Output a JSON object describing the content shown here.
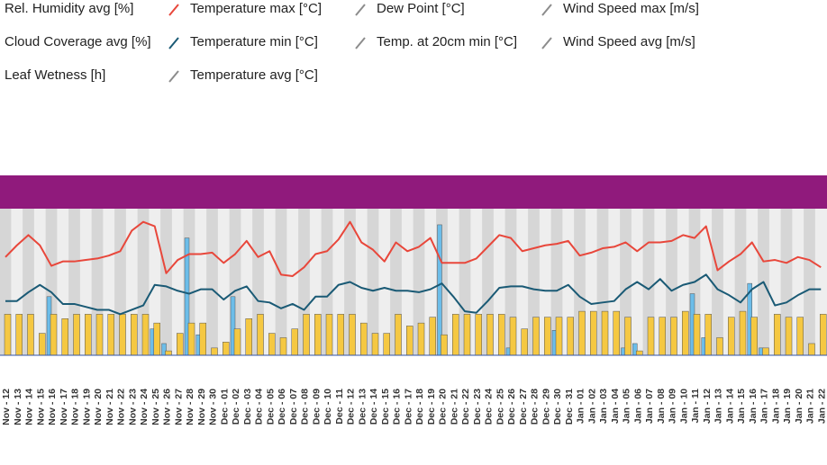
{
  "chart_data": {
    "type": "combo",
    "ylim": [
      0,
      100
    ],
    "categories": [
      "Nov - 12",
      "Nov - 13",
      "Nov - 14",
      "Nov - 15",
      "Nov - 16",
      "Nov - 17",
      "Nov - 18",
      "Nov - 19",
      "Nov - 20",
      "Nov - 21",
      "Nov - 22",
      "Nov - 23",
      "Nov - 24",
      "Nov - 25",
      "Nov - 26",
      "Nov - 27",
      "Nov - 28",
      "Nov - 29",
      "Nov - 30",
      "Dec - 01",
      "Dec - 02",
      "Dec - 03",
      "Dec - 04",
      "Dec - 05",
      "Dec - 06",
      "Dec - 07",
      "Dec - 08",
      "Dec - 09",
      "Dec - 10",
      "Dec - 11",
      "Dec - 12",
      "Dec - 13",
      "Dec - 14",
      "Dec - 15",
      "Dec - 16",
      "Dec - 17",
      "Dec - 18",
      "Dec - 19",
      "Dec - 20",
      "Dec - 21",
      "Dec - 22",
      "Dec - 23",
      "Dec - 24",
      "Dec - 25",
      "Dec - 26",
      "Dec - 27",
      "Dec - 28",
      "Dec - 29",
      "Dec - 30",
      "Dec - 31",
      "Jan - 01",
      "Jan - 02",
      "Jan - 03",
      "Jan - 04",
      "Jan - 05",
      "Jan - 06",
      "Jan - 07",
      "Jan - 08",
      "Jan - 09",
      "Jan - 10",
      "Jan - 11",
      "Jan - 12",
      "Jan - 13",
      "Jan - 14",
      "Jan - 15",
      "Jan - 16",
      "Jan - 17",
      "Jan - 18",
      "Jan - 19",
      "Jan - 20",
      "Jan - 21",
      "Jan - 22"
    ],
    "series": [
      {
        "name": "Rel. Humidity avg [%]",
        "kind": "bar",
        "color": "#3a7dc0",
        "values": [
          null,
          null,
          null,
          null,
          null,
          null,
          null,
          null,
          null,
          null,
          null,
          null,
          null,
          null,
          null,
          null,
          null,
          null,
          null,
          null,
          null,
          null,
          null,
          null,
          null,
          null,
          null,
          null,
          null,
          null,
          null,
          null,
          null,
          null,
          null,
          null,
          null,
          null,
          null,
          null,
          null,
          null,
          null,
          null,
          null,
          null,
          null,
          null,
          null,
          null,
          null,
          null,
          null,
          null,
          null,
          null,
          null,
          null,
          null,
          null,
          null,
          null,
          null,
          null,
          null,
          null,
          null,
          null,
          null,
          null,
          null,
          null
        ]
      },
      {
        "name": "Temperature max [°C]",
        "kind": "line",
        "color": "#e8473b",
        "values": [
          67,
          75,
          82,
          75,
          61,
          64,
          64,
          65,
          66,
          68,
          71,
          85,
          91,
          88,
          56,
          65,
          69,
          69,
          70,
          63,
          69,
          78,
          67,
          71,
          55,
          54,
          60,
          69,
          71,
          79,
          91,
          77,
          72,
          64,
          77,
          71,
          74,
          80,
          63,
          63,
          63,
          66,
          74,
          82,
          80,
          71,
          73,
          75,
          76,
          78,
          68,
          70,
          73,
          74,
          77,
          71,
          77,
          77,
          78,
          82,
          80,
          88,
          58,
          64,
          69,
          77,
          64,
          65,
          63,
          67,
          65,
          60
        ]
      },
      {
        "name": "Dew Point [°C]",
        "kind": "line",
        "color": "#8c8c8c",
        "values": [
          null,
          null,
          null,
          null,
          null,
          null,
          null,
          null,
          null,
          null,
          null,
          null,
          null,
          null,
          null,
          null,
          null,
          null,
          null,
          null,
          null,
          null,
          null,
          null,
          null,
          null,
          null,
          null,
          null,
          null,
          null,
          null,
          null,
          null,
          null,
          null,
          null,
          null,
          null,
          null,
          null,
          null,
          null,
          null,
          null,
          null,
          null,
          null,
          null,
          null,
          null,
          null,
          null,
          null,
          null,
          null,
          null,
          null,
          null,
          null,
          null,
          null,
          null,
          null,
          null,
          null,
          null,
          null,
          null,
          null,
          null,
          null
        ]
      },
      {
        "name": "Wind Speed max [m/s]",
        "kind": "line",
        "color": "#8c8c8c",
        "values": [
          null,
          null,
          null,
          null,
          null,
          null,
          null,
          null,
          null,
          null,
          null,
          null,
          null,
          null,
          null,
          null,
          null,
          null,
          null,
          null,
          null,
          null,
          null,
          null,
          null,
          null,
          null,
          null,
          null,
          null,
          null,
          null,
          null,
          null,
          null,
          null,
          null,
          null,
          null,
          null,
          null,
          null,
          null,
          null,
          null,
          null,
          null,
          null,
          null,
          null,
          null,
          null,
          null,
          null,
          null,
          null,
          null,
          null,
          null,
          null,
          null,
          null,
          null,
          null,
          null,
          null,
          null,
          null,
          null,
          null,
          null,
          null
        ]
      },
      {
        "name": "Cloud Coverage avg [%]",
        "kind": "bar",
        "color": "#6cbde9",
        "values": [
          0,
          0,
          0,
          0,
          40,
          0,
          0,
          0,
          0,
          0,
          0,
          0,
          0,
          18,
          8,
          0,
          80,
          14,
          0,
          0,
          40,
          0,
          0,
          0,
          0,
          0,
          0,
          0,
          0,
          0,
          0,
          0,
          0,
          0,
          0,
          0,
          0,
          0,
          89,
          0,
          0,
          0,
          0,
          0,
          5,
          0,
          0,
          0,
          17,
          0,
          0,
          0,
          0,
          0,
          5,
          8,
          0,
          0,
          0,
          0,
          42,
          12,
          0,
          0,
          0,
          49,
          5,
          0,
          0,
          0,
          0,
          0
        ]
      },
      {
        "name": "Temperature min [°C]",
        "kind": "line",
        "color": "#1a5a75",
        "values": [
          37,
          37,
          43,
          48,
          43,
          35,
          35,
          33,
          31,
          31,
          28,
          31,
          34,
          48,
          47,
          44,
          42,
          45,
          45,
          38,
          44,
          47,
          37,
          36,
          32,
          35,
          31,
          40,
          40,
          48,
          50,
          46,
          44,
          46,
          44,
          44,
          43,
          45,
          49,
          40,
          30,
          29,
          37,
          46,
          47,
          47,
          45,
          44,
          44,
          48,
          40,
          35,
          36,
          37,
          45,
          50,
          45,
          52,
          44,
          48,
          50,
          55,
          45,
          41,
          36,
          45,
          50,
          34,
          36,
          41,
          45,
          45
        ]
      },
      {
        "name": "Temp. at 20cm min [°C]",
        "kind": "line",
        "color": "#8c8c8c",
        "values": [
          null,
          null,
          null,
          null,
          null,
          null,
          null,
          null,
          null,
          null,
          null,
          null,
          null,
          null,
          null,
          null,
          null,
          null,
          null,
          null,
          null,
          null,
          null,
          null,
          null,
          null,
          null,
          null,
          null,
          null,
          null,
          null,
          null,
          null,
          null,
          null,
          null,
          null,
          null,
          null,
          null,
          null,
          null,
          null,
          null,
          null,
          null,
          null,
          null,
          null,
          null,
          null,
          null,
          null,
          null,
          null,
          null,
          null,
          null,
          null,
          null,
          null,
          null,
          null,
          null,
          null,
          null,
          null,
          null,
          null,
          null,
          null
        ]
      },
      {
        "name": "Wind Speed avg [m/s]",
        "kind": "line",
        "color": "#8c8c8c",
        "values": [
          null,
          null,
          null,
          null,
          null,
          null,
          null,
          null,
          null,
          null,
          null,
          null,
          null,
          null,
          null,
          null,
          null,
          null,
          null,
          null,
          null,
          null,
          null,
          null,
          null,
          null,
          null,
          null,
          null,
          null,
          null,
          null,
          null,
          null,
          null,
          null,
          null,
          null,
          null,
          null,
          null,
          null,
          null,
          null,
          null,
          null,
          null,
          null,
          null,
          null,
          null,
          null,
          null,
          null,
          null,
          null,
          null,
          null,
          null,
          null,
          null,
          null,
          null,
          null,
          null,
          null,
          null,
          null,
          null,
          null,
          null,
          null
        ]
      },
      {
        "name": "Leaf Wetness [h]",
        "kind": "bar",
        "color": "#f5c842",
        "values": [
          28,
          28,
          28,
          15,
          28,
          25,
          28,
          28,
          28,
          28,
          28,
          28,
          28,
          22,
          3,
          15,
          22,
          22,
          5,
          9,
          18,
          25,
          28,
          15,
          12,
          18,
          28,
          28,
          28,
          28,
          28,
          22,
          15,
          15,
          28,
          20,
          22,
          26,
          14,
          28,
          28,
          28,
          28,
          28,
          26,
          18,
          26,
          26,
          26,
          26,
          30,
          30,
          30,
          30,
          26,
          3,
          26,
          26,
          26,
          30,
          28,
          28,
          12,
          26,
          30,
          26,
          5,
          28,
          26,
          26,
          8,
          28
        ]
      },
      {
        "name": "Temperature avg [°C]",
        "kind": "line",
        "color": "#8c8c8c",
        "values": [
          null,
          null,
          null,
          null,
          null,
          null,
          null,
          null,
          null,
          null,
          null,
          null,
          null,
          null,
          null,
          null,
          null,
          null,
          null,
          null,
          null,
          null,
          null,
          null,
          null,
          null,
          null,
          null,
          null,
          null,
          null,
          null,
          null,
          null,
          null,
          null,
          null,
          null,
          null,
          null,
          null,
          null,
          null,
          null,
          null,
          null,
          null,
          null,
          null,
          null,
          null,
          null,
          null,
          null,
          null,
          null,
          null,
          null,
          null,
          null,
          null,
          null,
          null,
          null,
          null,
          null,
          null,
          null,
          null,
          null,
          null,
          null
        ]
      }
    ]
  }
}
